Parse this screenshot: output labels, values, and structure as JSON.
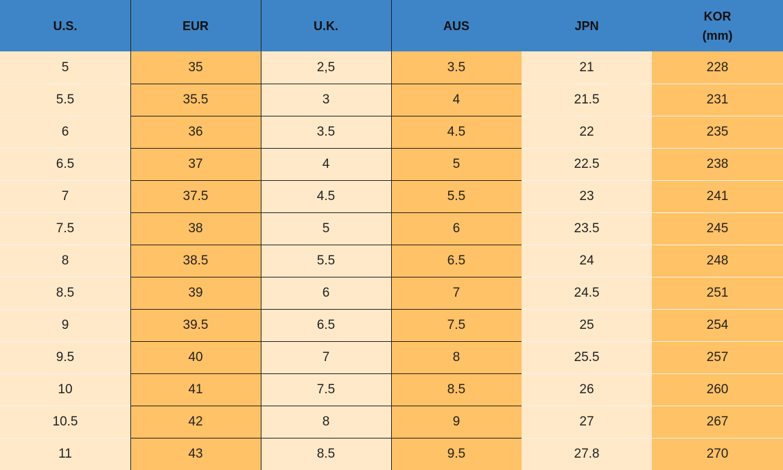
{
  "table": {
    "header": [
      "U.S.",
      "EUR",
      "U.K.",
      "AUS",
      "JPN",
      "KOR\n(mm)"
    ],
    "rows": [
      [
        "5",
        "35",
        "2,5",
        "3.5",
        "21",
        "228"
      ],
      [
        "5.5",
        "35.5",
        "3",
        "4",
        "21.5",
        "231"
      ],
      [
        "6",
        "36",
        "3.5",
        "4.5",
        "22",
        "235"
      ],
      [
        "6.5",
        "37",
        "4",
        "5",
        "22.5",
        "238"
      ],
      [
        "7",
        "37.5",
        "4.5",
        "5.5",
        "23",
        "241"
      ],
      [
        "7.5",
        "38",
        "5",
        "6",
        "23.5",
        "245"
      ],
      [
        "8",
        "38.5",
        "5.5",
        "6.5",
        "24",
        "248"
      ],
      [
        "8.5",
        "39",
        "6",
        "7",
        "24.5",
        "251"
      ],
      [
        "9",
        "39.5",
        "6.5",
        "7.5",
        "25",
        "254"
      ],
      [
        "9.5",
        "40",
        "7",
        "8",
        "25.5",
        "257"
      ],
      [
        "10",
        "41",
        "7.5",
        "8.5",
        "26",
        "260"
      ],
      [
        "10.5",
        "42",
        "8",
        "9",
        "27",
        "267"
      ],
      [
        "11",
        "43",
        "8.5",
        "9.5",
        "27.8",
        "270"
      ]
    ]
  }
}
